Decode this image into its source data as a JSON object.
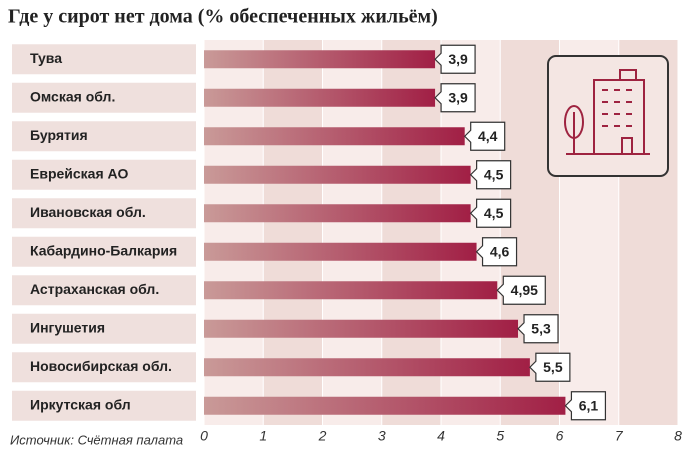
{
  "chart_data": {
    "type": "bar",
    "orientation": "horizontal",
    "title": "Где у сирот нет дома (% обеспеченных жильём)",
    "source": "Источник: Счётная палата",
    "categories": [
      "Тува",
      "Омская обл.",
      "Бурятия",
      "Еврейская АО",
      "Ивановская обл.",
      "Кабардино-Балкария",
      "Астраханская обл.",
      "Ингушетия",
      "Новосибирская обл.",
      "Иркутская обл"
    ],
    "values": [
      3.9,
      3.9,
      4.4,
      4.5,
      4.5,
      4.6,
      4.95,
      5.3,
      5.5,
      6.1
    ],
    "value_labels": [
      "3,9",
      "3,9",
      "4,4",
      "4,5",
      "4,5",
      "4,6",
      "4,95",
      "5,3",
      "5,5",
      "6,1"
    ],
    "color": "#9e2340",
    "xlim": [
      0,
      8
    ],
    "xticks": [
      0,
      1,
      2,
      3,
      4,
      5,
      6,
      7,
      8
    ]
  }
}
